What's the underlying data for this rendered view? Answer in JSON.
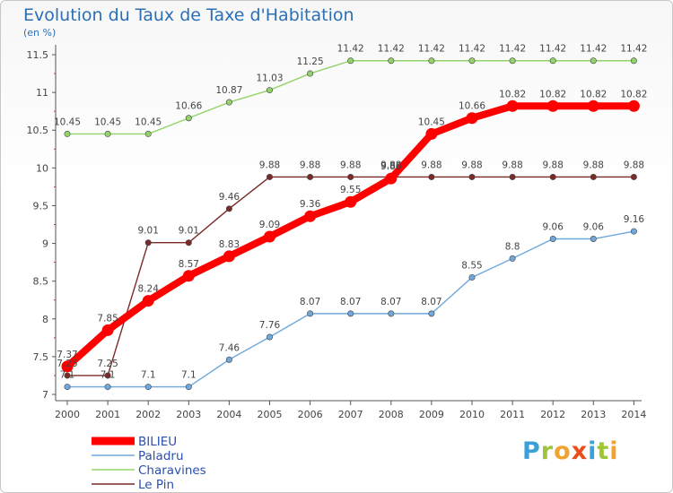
{
  "title": "Evolution du Taux de Taxe d'Habitation",
  "unit_label": "(en %)",
  "logo_text": "Proxiti",
  "chart_data": {
    "type": "line",
    "title": "Evolution du Taux de Taxe d'Habitation",
    "ylabel": "(en %)",
    "x": [
      "2000",
      "2001",
      "2002",
      "2003",
      "2004",
      "2005",
      "2006",
      "2007",
      "2008",
      "2009",
      "2010",
      "2011",
      "2012",
      "2013",
      "2014"
    ],
    "ylim": [
      7,
      11.5
    ],
    "yticks": [
      "7",
      "7.5",
      "8",
      "8.5",
      "9",
      "9.5",
      "10",
      "10.5",
      "11",
      "11.5"
    ],
    "grid": false,
    "legend_position": "bottom-left",
    "series": [
      {
        "name": "BILIEU",
        "color": "#ff0000",
        "emphasis": true,
        "values": [
          7.37,
          7.85,
          8.24,
          8.57,
          8.83,
          9.09,
          9.36,
          9.55,
          9.86,
          10.45,
          10.66,
          10.82,
          10.82,
          10.82,
          10.82
        ]
      },
      {
        "name": "Paladru",
        "color": "#6fa8dc",
        "values": [
          7.1,
          7.1,
          7.1,
          7.1,
          7.46,
          7.76,
          8.07,
          8.07,
          8.07,
          8.07,
          8.55,
          8.8,
          9.06,
          9.06,
          9.16
        ]
      },
      {
        "name": "Charavines",
        "color": "#93d36b",
        "values": [
          10.45,
          10.45,
          10.45,
          10.66,
          10.87,
          11.03,
          11.25,
          11.42,
          11.42,
          11.42,
          11.42,
          11.42,
          11.42,
          11.42,
          11.42
        ]
      },
      {
        "name": "Le Pin",
        "color": "#7b2a2a",
        "values": [
          7.25,
          7.25,
          9.01,
          9.01,
          9.46,
          9.88,
          9.88,
          9.88,
          9.88,
          9.88,
          9.88,
          9.88,
          9.88,
          9.88,
          9.88
        ]
      }
    ]
  }
}
